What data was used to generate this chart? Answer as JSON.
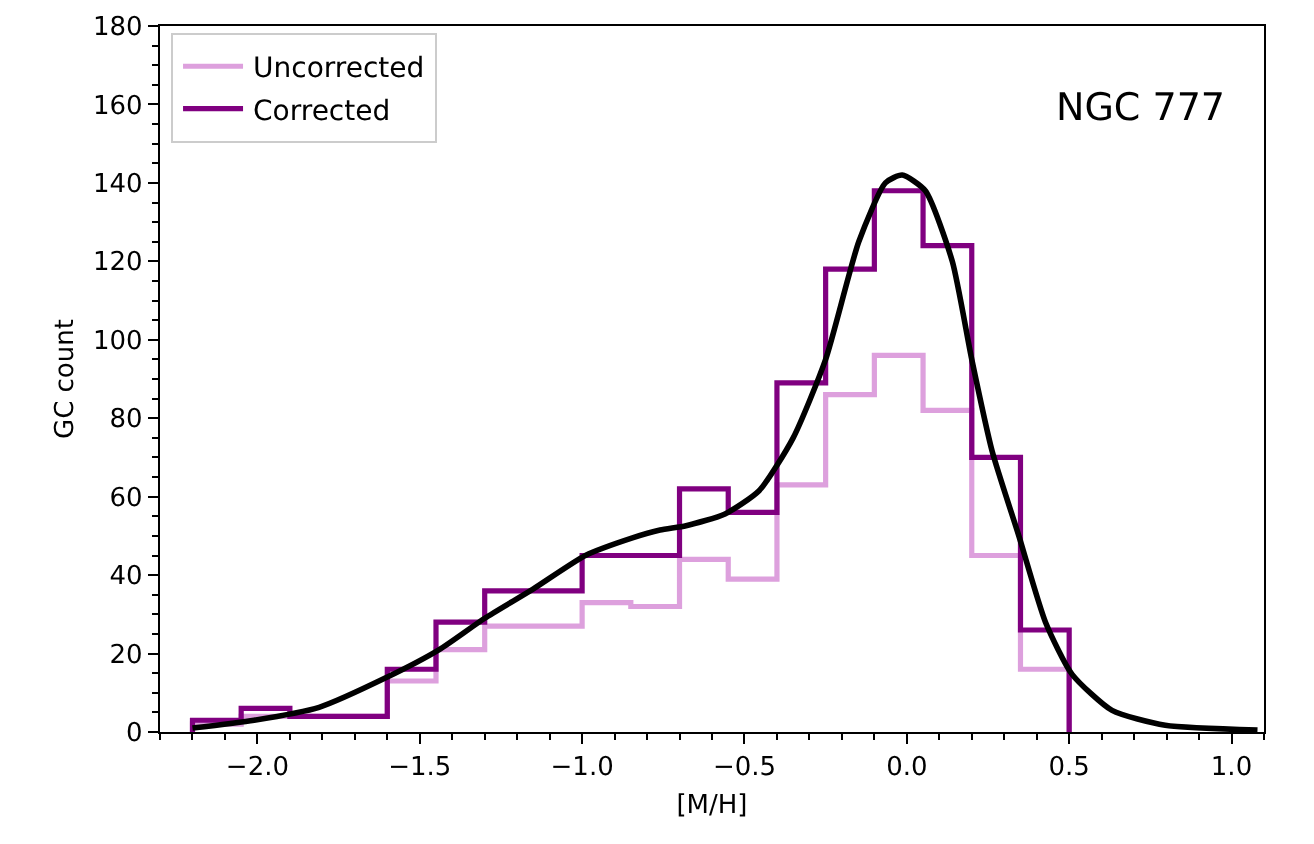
{
  "chart_data": {
    "type": "histogram",
    "xlabel": "[M/H]",
    "ylabel": "GC count",
    "annotations": [
      "NGC 777"
    ],
    "bins": [
      -2.2,
      -2.05,
      -1.9,
      -1.75,
      -1.6,
      -1.45,
      -1.3,
      -1.15,
      -1.0,
      -0.85,
      -0.7,
      -0.55,
      -0.4,
      -0.25,
      -0.1,
      0.05,
      0.2,
      0.35,
      0.5
    ],
    "series": [
      {
        "name": "Uncorrected",
        "color": "#dda0dd",
        "values": [
          2,
          4,
          4,
          4,
          13,
          21,
          27,
          27,
          33,
          32,
          44,
          39,
          63,
          86,
          96,
          82,
          45,
          16
        ]
      },
      {
        "name": "Corrected",
        "color": "#800080",
        "values": [
          3,
          6,
          4,
          4,
          16,
          28,
          36,
          36,
          45,
          45,
          62,
          56,
          89,
          118,
          138,
          124,
          70,
          26
        ]
      },
      {
        "type": "line",
        "color": "#000000",
        "x": [
          -2.2,
          -2.01,
          -1.81,
          -1.6,
          -1.44,
          -1.3,
          -1.15,
          -0.99,
          -0.845,
          -0.76,
          -0.68,
          -0.56,
          -0.455,
          -0.35,
          -0.25,
          -0.148,
          -0.066,
          -0.014,
          0.057,
          0.14,
          0.2,
          0.263,
          0.345,
          0.427,
          0.509,
          0.632,
          0.796,
          1.08
        ],
        "values": [
          1,
          3,
          6.3,
          14,
          21,
          29,
          36.5,
          45,
          49.5,
          51.5,
          52.6,
          55.6,
          61.5,
          75,
          95,
          125,
          140,
          142,
          138,
          120,
          95,
          71.5,
          50,
          28,
          14.7,
          5.5,
          1.7,
          0.5
        ]
      }
    ],
    "xlim": [
      -2.3,
      1.1
    ],
    "xticks": [
      {
        "value": -2.0,
        "label": "−2.0"
      },
      {
        "value": -1.5,
        "label": "−1.5"
      },
      {
        "value": -1.0,
        "label": "−1.0"
      },
      {
        "value": -0.5,
        "label": "−0.5"
      },
      {
        "value": 0.0,
        "label": "0.0"
      },
      {
        "value": 0.5,
        "label": "0.5"
      },
      {
        "value": 1.0,
        "label": "1.0"
      }
    ],
    "ylim": [
      0,
      180
    ],
    "yticks": [
      0,
      20,
      40,
      60,
      80,
      100,
      120,
      140,
      160,
      180
    ],
    "legend": "top left"
  }
}
